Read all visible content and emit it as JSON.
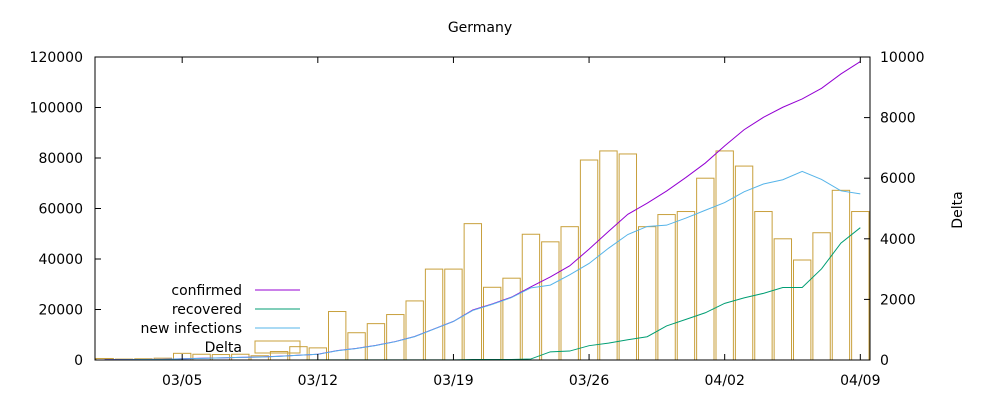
{
  "chart_data": {
    "type": "bar+line",
    "title": "Germany",
    "xlabel": "",
    "ylabel_left": "",
    "ylabel_right": "Delta",
    "x_ticks": [
      "03/05",
      "03/12",
      "03/19",
      "03/26",
      "04/02",
      "04/09"
    ],
    "x_start_date": "03/01",
    "x_end_date": "04/09",
    "ylim_left": [
      0,
      120000
    ],
    "y_ticks_left": [
      0,
      20000,
      40000,
      60000,
      80000,
      100000,
      120000
    ],
    "ylim_right": [
      0,
      10000
    ],
    "y_ticks_right": [
      0,
      2000,
      4000,
      6000,
      8000,
      10000
    ],
    "legend_position": "bottom-left",
    "grid": false,
    "dates": [
      "03/01",
      "03/02",
      "03/03",
      "03/04",
      "03/05",
      "03/06",
      "03/07",
      "03/08",
      "03/09",
      "03/10",
      "03/11",
      "03/12",
      "03/13",
      "03/14",
      "03/15",
      "03/16",
      "03/17",
      "03/18",
      "03/19",
      "03/20",
      "03/21",
      "03/22",
      "03/23",
      "03/24",
      "03/25",
      "03/26",
      "03/27",
      "03/28",
      "03/29",
      "03/30",
      "03/31",
      "04/01",
      "04/02",
      "04/03",
      "04/04",
      "04/05",
      "04/06",
      "04/07",
      "04/08",
      "04/09"
    ],
    "series": [
      {
        "name": "confirmed",
        "axis": "left",
        "color": "#9400d3",
        "style": "line",
        "values": [
          130,
          160,
          200,
          260,
          480,
          670,
          850,
          1040,
          1180,
          1460,
          1900,
          2300,
          3700,
          4600,
          5800,
          7300,
          9300,
          12300,
          15300,
          19800,
          22200,
          24900,
          29000,
          32900,
          37300,
          43900,
          50900,
          57700,
          62100,
          66900,
          72300,
          78000,
          84800,
          91200,
          96100,
          100100,
          103400,
          107600,
          113300,
          118200
        ]
      },
      {
        "name": "recovered",
        "axis": "left",
        "color": "#009e73",
        "style": "line",
        "values": [
          16,
          16,
          16,
          18,
          18,
          18,
          18,
          18,
          18,
          25,
          25,
          46,
          46,
          46,
          46,
          46,
          46,
          46,
          46,
          180,
          180,
          180,
          420,
          3240,
          3540,
          5670,
          6660,
          8000,
          9210,
          13500,
          16100,
          18700,
          22440,
          24600,
          26400,
          28700,
          28700,
          36100,
          46300,
          52400
        ]
      },
      {
        "name": "new infections",
        "axis": "left",
        "color": "#56b4e9",
        "style": "line",
        "values": [
          114,
          144,
          184,
          242,
          462,
          652,
          832,
          1022,
          1162,
          1435,
          1875,
          2254,
          3654,
          4554,
          5754,
          7254,
          9254,
          12254,
          15254,
          19620,
          22020,
          24720,
          28580,
          29660,
          33760,
          38230,
          44240,
          49700,
          52890,
          53400,
          56200,
          59300,
          62360,
          66600,
          69700,
          71400,
          74700,
          71500,
          67000,
          65800
        ]
      },
      {
        "name": "Delta",
        "axis": "right",
        "color": "#c8a03c",
        "style": "bar",
        "values": [
          50,
          30,
          40,
          60,
          220,
          190,
          180,
          190,
          140,
          280,
          440,
          400,
          1600,
          900,
          1200,
          1500,
          1950,
          3000,
          3000,
          4500,
          2400,
          2700,
          4150,
          3900,
          4400,
          6600,
          6900,
          6800,
          4400,
          4800,
          4900,
          6000,
          6900,
          6400,
          4900,
          4000,
          3300,
          4200,
          5600,
          4900
        ]
      }
    ]
  }
}
